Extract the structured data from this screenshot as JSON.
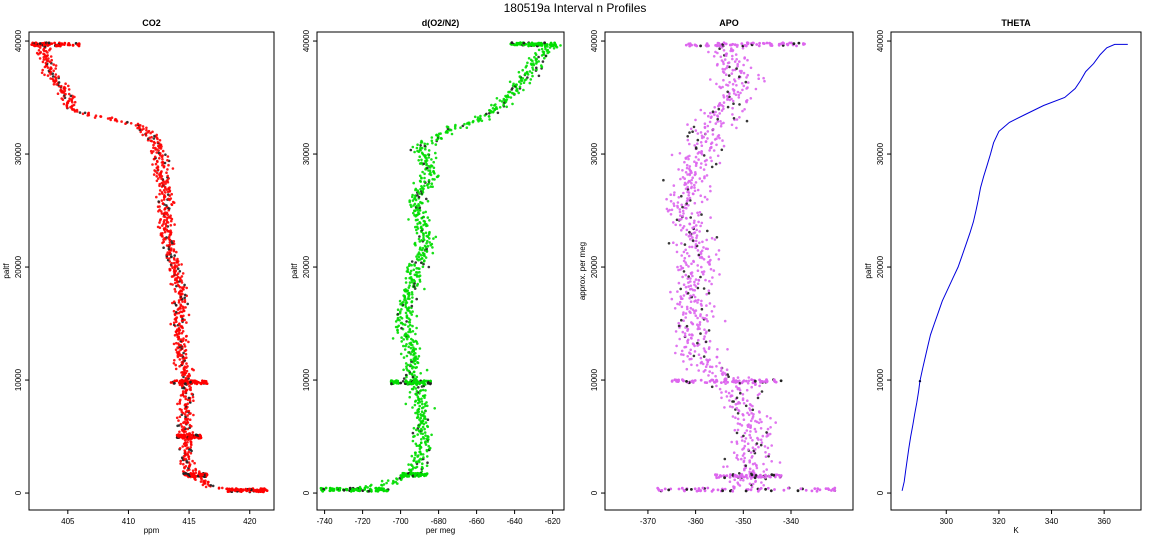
{
  "figure": {
    "title": "180519a   Interval n Profiles"
  },
  "chart_data": [
    {
      "type": "scatter",
      "title": "CO2",
      "xlabel": "ppm",
      "ylabel": "paltf",
      "xlim": [
        401.8,
        422
      ],
      "ylim": [
        -1500,
        40800
      ],
      "xticks": [
        405,
        410,
        415,
        420
      ],
      "yticks": [
        0,
        10000,
        20000,
        30000,
        40000
      ],
      "color": "#ff0000",
      "profile": [
        [
          402.5,
          39700
        ],
        [
          403.0,
          39300
        ],
        [
          403.3,
          38500
        ],
        [
          403.7,
          37000
        ],
        [
          404.4,
          36000
        ],
        [
          405.0,
          35000
        ],
        [
          405.3,
          34000
        ],
        [
          406.5,
          33500
        ],
        [
          409.0,
          33000
        ],
        [
          411.0,
          32500
        ],
        [
          412.0,
          31500
        ],
        [
          412.5,
          30500
        ],
        [
          412.7,
          29000
        ],
        [
          413.0,
          27000
        ],
        [
          413.0,
          25000
        ],
        [
          413.2,
          23000
        ],
        [
          413.5,
          21000
        ],
        [
          414.0,
          19000
        ],
        [
          414.3,
          17000
        ],
        [
          414.2,
          15000
        ],
        [
          414.3,
          13000
        ],
        [
          414.6,
          11000
        ],
        [
          414.8,
          9000
        ],
        [
          414.7,
          7000
        ],
        [
          414.8,
          5000
        ],
        [
          414.8,
          3000
        ],
        [
          415.0,
          2000
        ],
        [
          415.3,
          1500
        ],
        [
          417.0,
          500
        ],
        [
          419.0,
          300
        ]
      ],
      "spread": 0.6,
      "bursts": [
        {
          "y": 39700,
          "x": [
            402,
            406
          ]
        },
        {
          "y": 9800,
          "x": [
            413.5,
            416.5
          ]
        },
        {
          "y": 5000,
          "x": [
            414,
            416
          ]
        },
        {
          "y": 1600,
          "x": [
            414.5,
            416.5
          ]
        },
        {
          "y": 250,
          "x": [
            418,
            421.5
          ]
        }
      ]
    },
    {
      "type": "scatter",
      "title": "d(O2/N2)",
      "xlabel": "per meg",
      "ylabel": "paltf",
      "xlim": [
        -744,
        -614
      ],
      "ylim": [
        -1500,
        40800
      ],
      "xticks": [
        -740,
        -720,
        -700,
        -680,
        -660,
        -640,
        -620
      ],
      "yticks": [
        0,
        10000,
        20000,
        30000,
        40000
      ],
      "color": "#00dd00",
      "profile": [
        [
          -621,
          39700
        ],
        [
          -628,
          38500
        ],
        [
          -633,
          37000
        ],
        [
          -638,
          36000
        ],
        [
          -644,
          34800
        ],
        [
          -650,
          34000
        ],
        [
          -658,
          33000
        ],
        [
          -670,
          32500
        ],
        [
          -680,
          31500
        ],
        [
          -690,
          30500
        ],
        [
          -686,
          29500
        ],
        [
          -684,
          28000
        ],
        [
          -690,
          26500
        ],
        [
          -692,
          25000
        ],
        [
          -688,
          23500
        ],
        [
          -687,
          22000
        ],
        [
          -690,
          20500
        ],
        [
          -693,
          19000
        ],
        [
          -697,
          17000
        ],
        [
          -697,
          15000
        ],
        [
          -695,
          13000
        ],
        [
          -694,
          11000
        ],
        [
          -692,
          9500
        ],
        [
          -690,
          7500
        ],
        [
          -689,
          5500
        ],
        [
          -688,
          4000
        ],
        [
          -690,
          2500
        ],
        [
          -695,
          1600
        ],
        [
          -705,
          800
        ],
        [
          -730,
          300
        ]
      ],
      "spread": 5,
      "bursts": [
        {
          "y": 39700,
          "x": [
            -642,
            -618
          ]
        },
        {
          "y": 9800,
          "x": [
            -705,
            -684
          ]
        },
        {
          "y": 1600,
          "x": [
            -700,
            -686
          ]
        },
        {
          "y": 300,
          "x": [
            -742,
            -706
          ]
        }
      ]
    },
    {
      "type": "scatter",
      "title": "APO",
      "xlabel": "",
      "ylabel": "approx. per meg",
      "xlim": [
        -379,
        -327
      ],
      "ylim": [
        -1500,
        40800
      ],
      "xticks": [
        -370,
        -360,
        -350,
        -340
      ],
      "yticks": [
        0,
        10000,
        20000,
        30000,
        40000
      ],
      "color": "#dd66ee",
      "profile": [
        [
          -355,
          39700
        ],
        [
          -353,
          38000
        ],
        [
          -350,
          36500
        ],
        [
          -352,
          35000
        ],
        [
          -356,
          33000
        ],
        [
          -358,
          31000
        ],
        [
          -360,
          29000
        ],
        [
          -361,
          27000
        ],
        [
          -362,
          25000
        ],
        [
          -360,
          23000
        ],
        [
          -360,
          21000
        ],
        [
          -360,
          19000
        ],
        [
          -361,
          17000
        ],
        [
          -360,
          15000
        ],
        [
          -360,
          13000
        ],
        [
          -357,
          11000
        ],
        [
          -352,
          9800
        ],
        [
          -350,
          8000
        ],
        [
          -348,
          6000
        ],
        [
          -348,
          4000
        ],
        [
          -349,
          2000
        ],
        [
          -350,
          500
        ]
      ],
      "spread": 4.5,
      "bursts": [
        {
          "y": 39700,
          "x": [
            -362,
            -337
          ]
        },
        {
          "y": 9900,
          "x": [
            -365,
            -342
          ]
        },
        {
          "y": 1500,
          "x": [
            -356,
            -342
          ]
        },
        {
          "y": 300,
          "x": [
            -368,
            -330
          ]
        }
      ]
    },
    {
      "type": "line",
      "title": "THETA",
      "xlabel": "K",
      "ylabel": "paltf",
      "xlim": [
        279,
        374
      ],
      "ylim": [
        -1500,
        40800
      ],
      "xticks": [
        300,
        320,
        340,
        360
      ],
      "yticks": [
        0,
        10000,
        20000,
        30000,
        40000
      ],
      "color": "#0000dd",
      "line": [
        [
          283.2,
          200
        ],
        [
          284,
          1000
        ],
        [
          284.6,
          2000
        ],
        [
          285.2,
          3000
        ],
        [
          285.8,
          4000
        ],
        [
          286.5,
          5000
        ],
        [
          287.3,
          6000
        ],
        [
          288,
          7000
        ],
        [
          288.8,
          8000
        ],
        [
          289.5,
          9000
        ],
        [
          290,
          9900
        ],
        [
          291,
          11000
        ],
        [
          292,
          12000
        ],
        [
          293,
          13000
        ],
        [
          294,
          14000
        ],
        [
          295.5,
          15000
        ],
        [
          297,
          16000
        ],
        [
          298.5,
          17000
        ],
        [
          300.5,
          18000
        ],
        [
          302.5,
          19000
        ],
        [
          304.5,
          20000
        ],
        [
          306,
          21000
        ],
        [
          307.5,
          22000
        ],
        [
          309,
          23000
        ],
        [
          310.3,
          24000
        ],
        [
          311.3,
          25000
        ],
        [
          312.2,
          26000
        ],
        [
          313,
          27000
        ],
        [
          314.2,
          28000
        ],
        [
          315.5,
          29000
        ],
        [
          316.8,
          30000
        ],
        [
          318,
          31000
        ],
        [
          320,
          32000
        ],
        [
          324,
          32800
        ],
        [
          330,
          33500
        ],
        [
          337,
          34300
        ],
        [
          345,
          35000
        ],
        [
          349,
          35800
        ],
        [
          351,
          36500
        ],
        [
          353,
          37300
        ],
        [
          356,
          38000
        ],
        [
          358.5,
          38800
        ],
        [
          361,
          39400
        ],
        [
          364,
          39700
        ],
        [
          369,
          39700
        ]
      ]
    }
  ]
}
